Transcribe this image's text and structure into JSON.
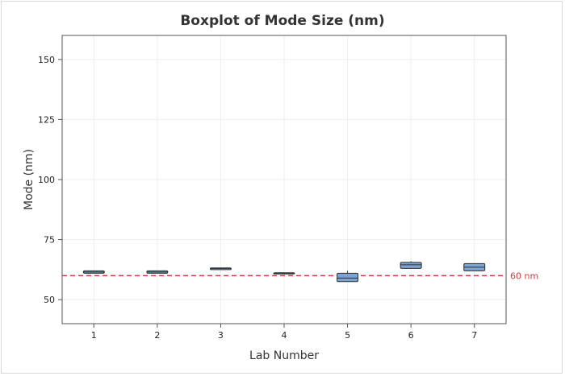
{
  "chart_data": {
    "type": "boxplot",
    "title": "Boxplot of Mode Size (nm)",
    "xlabel": "Lab Number",
    "ylabel": "Mode (nm)",
    "categories": [
      "1",
      "2",
      "3",
      "4",
      "5",
      "6",
      "7"
    ],
    "ylim": [
      40,
      160
    ],
    "yticks": [
      50,
      75,
      100,
      125,
      150
    ],
    "grid": true,
    "box_color": "#7BA3D4",
    "box_edge_color": "#2f2f2f",
    "boxes": [
      {
        "category": "1",
        "min": 61,
        "q1": 61,
        "median": 61.5,
        "q3": 62,
        "max": 62
      },
      {
        "category": "2",
        "min": 61,
        "q1": 61,
        "median": 61.5,
        "q3": 62,
        "max": 62
      },
      {
        "category": "3",
        "min": 62.5,
        "q1": 62.5,
        "median": 63,
        "q3": 63.2,
        "max": 63.2
      },
      {
        "category": "4",
        "min": 61,
        "q1": 61,
        "median": 61,
        "q3": 61.2,
        "max": 61.2
      },
      {
        "category": "5",
        "min": 57.5,
        "q1": 57.5,
        "median": 59,
        "q3": 61,
        "max": 62
      },
      {
        "category": "6",
        "min": 63,
        "q1": 63,
        "median": 64.5,
        "q3": 65.5,
        "max": 66
      },
      {
        "category": "7",
        "min": 62,
        "q1": 62,
        "median": 63.5,
        "q3": 65,
        "max": 65
      }
    ],
    "reference_line": {
      "value": 60,
      "label": "60 nm",
      "color": "#d23a3a",
      "style": "dashed"
    }
  }
}
